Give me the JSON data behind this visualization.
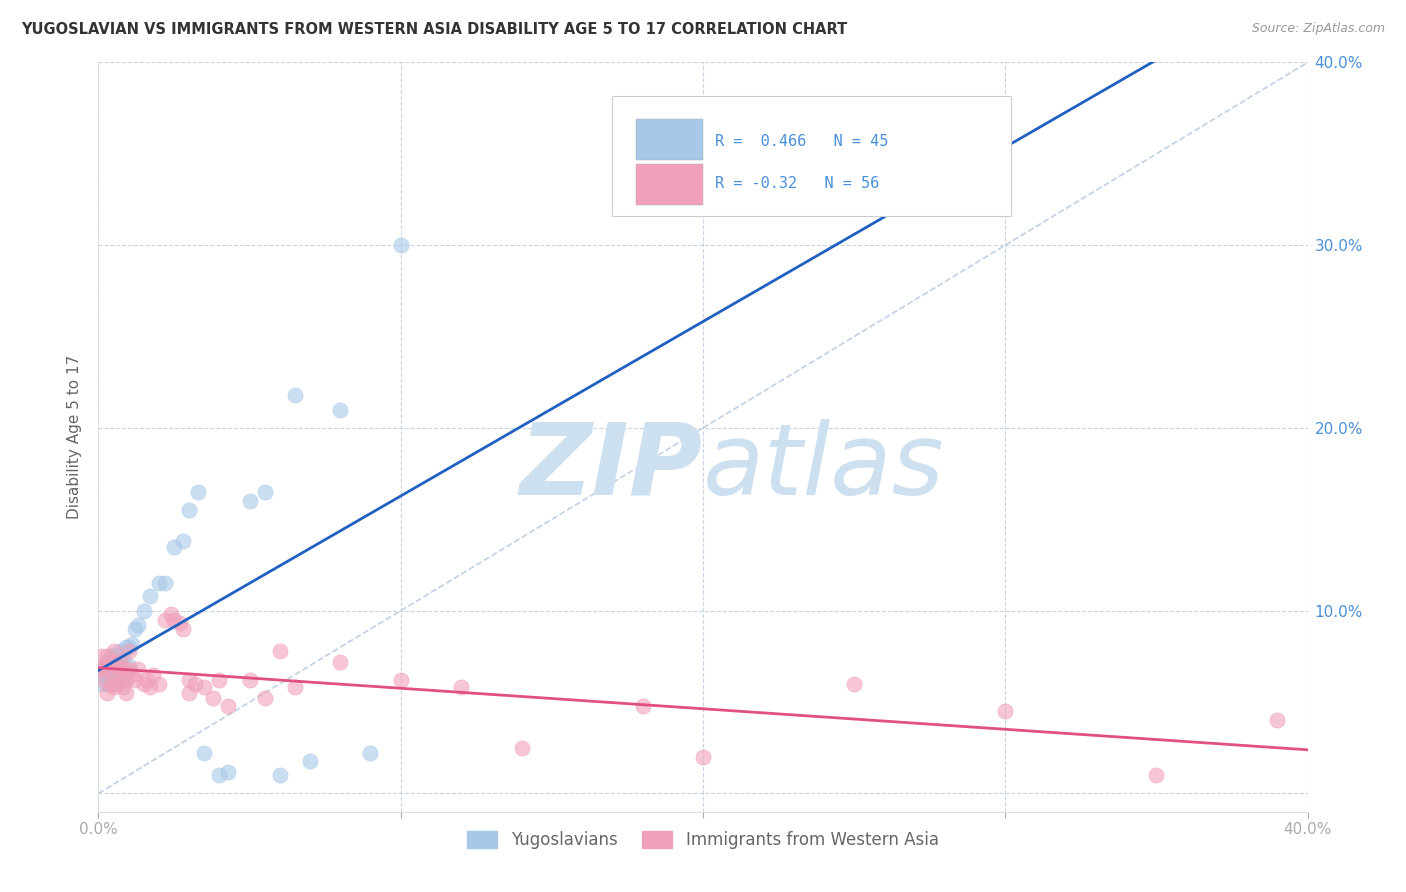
{
  "title": "YUGOSLAVIAN VS IMMIGRANTS FROM WESTERN ASIA DISABILITY AGE 5 TO 17 CORRELATION CHART",
  "source": "Source: ZipAtlas.com",
  "ylabel": "Disability Age 5 to 17",
  "xlim": [
    0.0,
    0.4
  ],
  "ylim": [
    -0.01,
    0.4
  ],
  "legend_label1": "Yugoslavians",
  "legend_label2": "Immigrants from Western Asia",
  "R1": 0.466,
  "N1": 45,
  "R2": -0.32,
  "N2": 56,
  "color_blue": "#a8c8e8",
  "color_pink": "#f0a0b8",
  "color_blue_text": "#4a90d9",
  "trendline_blue": "#2060c0",
  "trendline_pink": "#e05080",
  "trendline_dashed": "#b8cce0",
  "watermark_zip": "#cce0f0",
  "watermark_atlas": "#cce0f0",
  "background_color": "#ffffff",
  "grid_color": "#c8d4e4",
  "title_color": "#333333",
  "source_color": "#999999",
  "axis_label_color": "#666666",
  "tick_color": "#aaaaaa",
  "right_tick_color": "#4a90d9",
  "yug_x": [
    0.001,
    0.002,
    0.002,
    0.003,
    0.003,
    0.003,
    0.004,
    0.004,
    0.004,
    0.005,
    0.005,
    0.005,
    0.006,
    0.006,
    0.006,
    0.007,
    0.007,
    0.008,
    0.008,
    0.009,
    0.009,
    0.01,
    0.01,
    0.011,
    0.012,
    0.013,
    0.015,
    0.017,
    0.02,
    0.022,
    0.025,
    0.028,
    0.03,
    0.033,
    0.035,
    0.04,
    0.043,
    0.05,
    0.055,
    0.06,
    0.065,
    0.07,
    0.08,
    0.09,
    0.1
  ],
  "yug_y": [
    0.06,
    0.065,
    0.07,
    0.06,
    0.065,
    0.072,
    0.062,
    0.068,
    0.075,
    0.06,
    0.068,
    0.075,
    0.062,
    0.068,
    0.075,
    0.065,
    0.078,
    0.065,
    0.075,
    0.062,
    0.08,
    0.07,
    0.08,
    0.082,
    0.09,
    0.092,
    0.1,
    0.108,
    0.115,
    0.115,
    0.135,
    0.138,
    0.155,
    0.165,
    0.022,
    0.01,
    0.012,
    0.16,
    0.165,
    0.01,
    0.218,
    0.018,
    0.21,
    0.022,
    0.3
  ],
  "west_x": [
    0.001,
    0.001,
    0.002,
    0.002,
    0.003,
    0.003,
    0.003,
    0.004,
    0.004,
    0.005,
    0.005,
    0.005,
    0.006,
    0.006,
    0.007,
    0.007,
    0.008,
    0.008,
    0.009,
    0.009,
    0.01,
    0.01,
    0.011,
    0.012,
    0.013,
    0.015,
    0.016,
    0.017,
    0.018,
    0.02,
    0.022,
    0.024,
    0.025,
    0.027,
    0.028,
    0.03,
    0.03,
    0.032,
    0.035,
    0.038,
    0.04,
    0.043,
    0.05,
    0.055,
    0.06,
    0.065,
    0.08,
    0.1,
    0.12,
    0.14,
    0.18,
    0.2,
    0.25,
    0.3,
    0.35,
    0.39
  ],
  "west_y": [
    0.068,
    0.075,
    0.062,
    0.07,
    0.055,
    0.068,
    0.075,
    0.06,
    0.072,
    0.058,
    0.065,
    0.078,
    0.06,
    0.07,
    0.065,
    0.072,
    0.058,
    0.068,
    0.055,
    0.062,
    0.068,
    0.078,
    0.065,
    0.062,
    0.068,
    0.06,
    0.062,
    0.058,
    0.065,
    0.06,
    0.095,
    0.098,
    0.095,
    0.093,
    0.09,
    0.062,
    0.055,
    0.06,
    0.058,
    0.052,
    0.062,
    0.048,
    0.062,
    0.052,
    0.078,
    0.058,
    0.072,
    0.062,
    0.058,
    0.025,
    0.048,
    0.02,
    0.06,
    0.045,
    0.01,
    0.04
  ]
}
